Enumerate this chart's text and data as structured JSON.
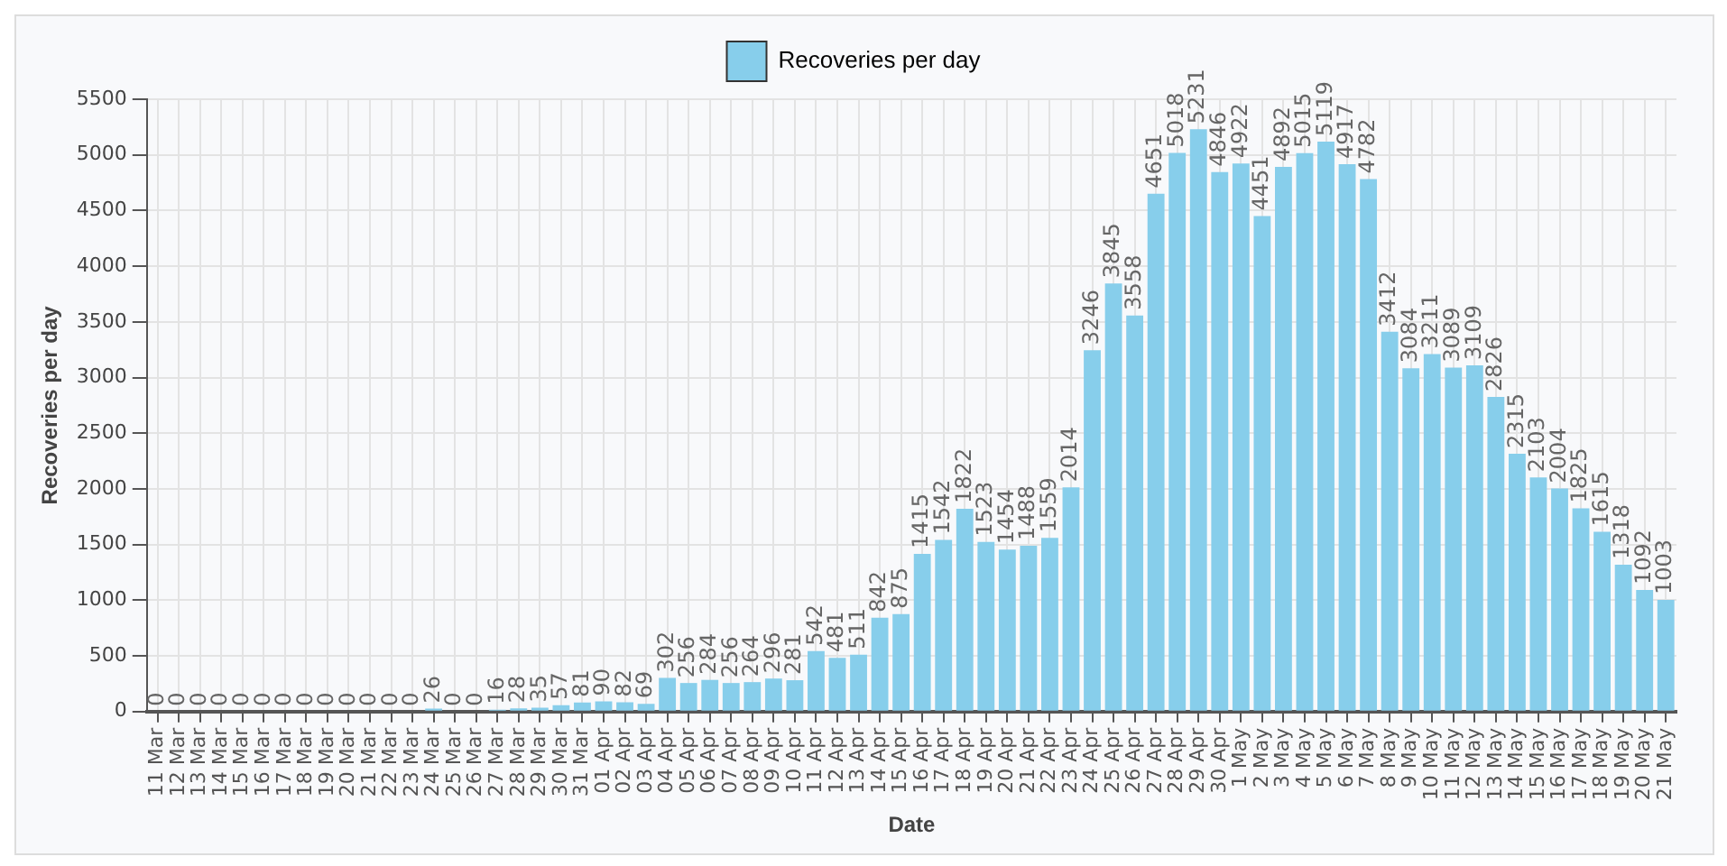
{
  "chart_data": {
    "type": "bar",
    "categories": [
      "11 Mar",
      "12 Mar",
      "13 Mar",
      "14 Mar",
      "15 Mar",
      "16 Mar",
      "17 Mar",
      "18 Mar",
      "19 Mar",
      "20 Mar",
      "21 Mar",
      "22 Mar",
      "23 Mar",
      "24 Mar",
      "25 Mar",
      "26 Mar",
      "27 Mar",
      "28 Mar",
      "29 Mar",
      "30 Mar",
      "31 Mar",
      "01 Apr",
      "02 Apr",
      "03 Apr",
      "04 Apr",
      "05 Apr",
      "06 Apr",
      "07 Apr",
      "08 Apr",
      "09 Apr",
      "10 Apr",
      "11 Apr",
      "12 Apr",
      "13 Apr",
      "14 Apr",
      "15 Apr",
      "16 Apr",
      "17 Apr",
      "18 Apr",
      "19 Apr",
      "20 Apr",
      "21 Apr",
      "22 Apr",
      "23 Apr",
      "24 Apr",
      "25 Apr",
      "26 Apr",
      "27 Apr",
      "28 Apr",
      "29 Apr",
      "30 Apr",
      "1 May",
      "2 May",
      "3 May",
      "4 May",
      "5 May",
      "6 May",
      "7 May",
      "8 May",
      "9 May",
      "10 May",
      "11 May",
      "12 May",
      "13 May",
      "14 May",
      "15 May",
      "16 May",
      "17 May",
      "18 May",
      "19 May",
      "20 May",
      "21 May"
    ],
    "series": [
      {
        "name": "Recoveries per day",
        "color": "#87ceeb",
        "values": [
          0,
          0,
          0,
          0,
          0,
          0,
          0,
          0,
          0,
          0,
          0,
          0,
          0,
          26,
          0,
          0,
          16,
          28,
          35,
          57,
          81,
          90,
          82,
          69,
          302,
          256,
          284,
          256,
          264,
          296,
          281,
          542,
          481,
          511,
          842,
          875,
          1415,
          1542,
          1822,
          1523,
          1454,
          1488,
          1559,
          2014,
          3246,
          3845,
          3558,
          4651,
          5018,
          5231,
          4846,
          4922,
          4451,
          4892,
          5015,
          5119,
          4917,
          4782,
          3412,
          3084,
          3211,
          3089,
          3109,
          2826,
          2315,
          2103,
          2004,
          1825,
          1615,
          1318,
          1092,
          1003
        ]
      }
    ],
    "xlabel": "Date",
    "ylabel": "Recoveries per day",
    "ylim": [
      0,
      5500
    ],
    "yticks": [
      0,
      500,
      1000,
      1500,
      2000,
      2500,
      3000,
      3500,
      4000,
      4500,
      5000,
      5500
    ],
    "grid": true,
    "legend": "top",
    "data_labels": true
  }
}
